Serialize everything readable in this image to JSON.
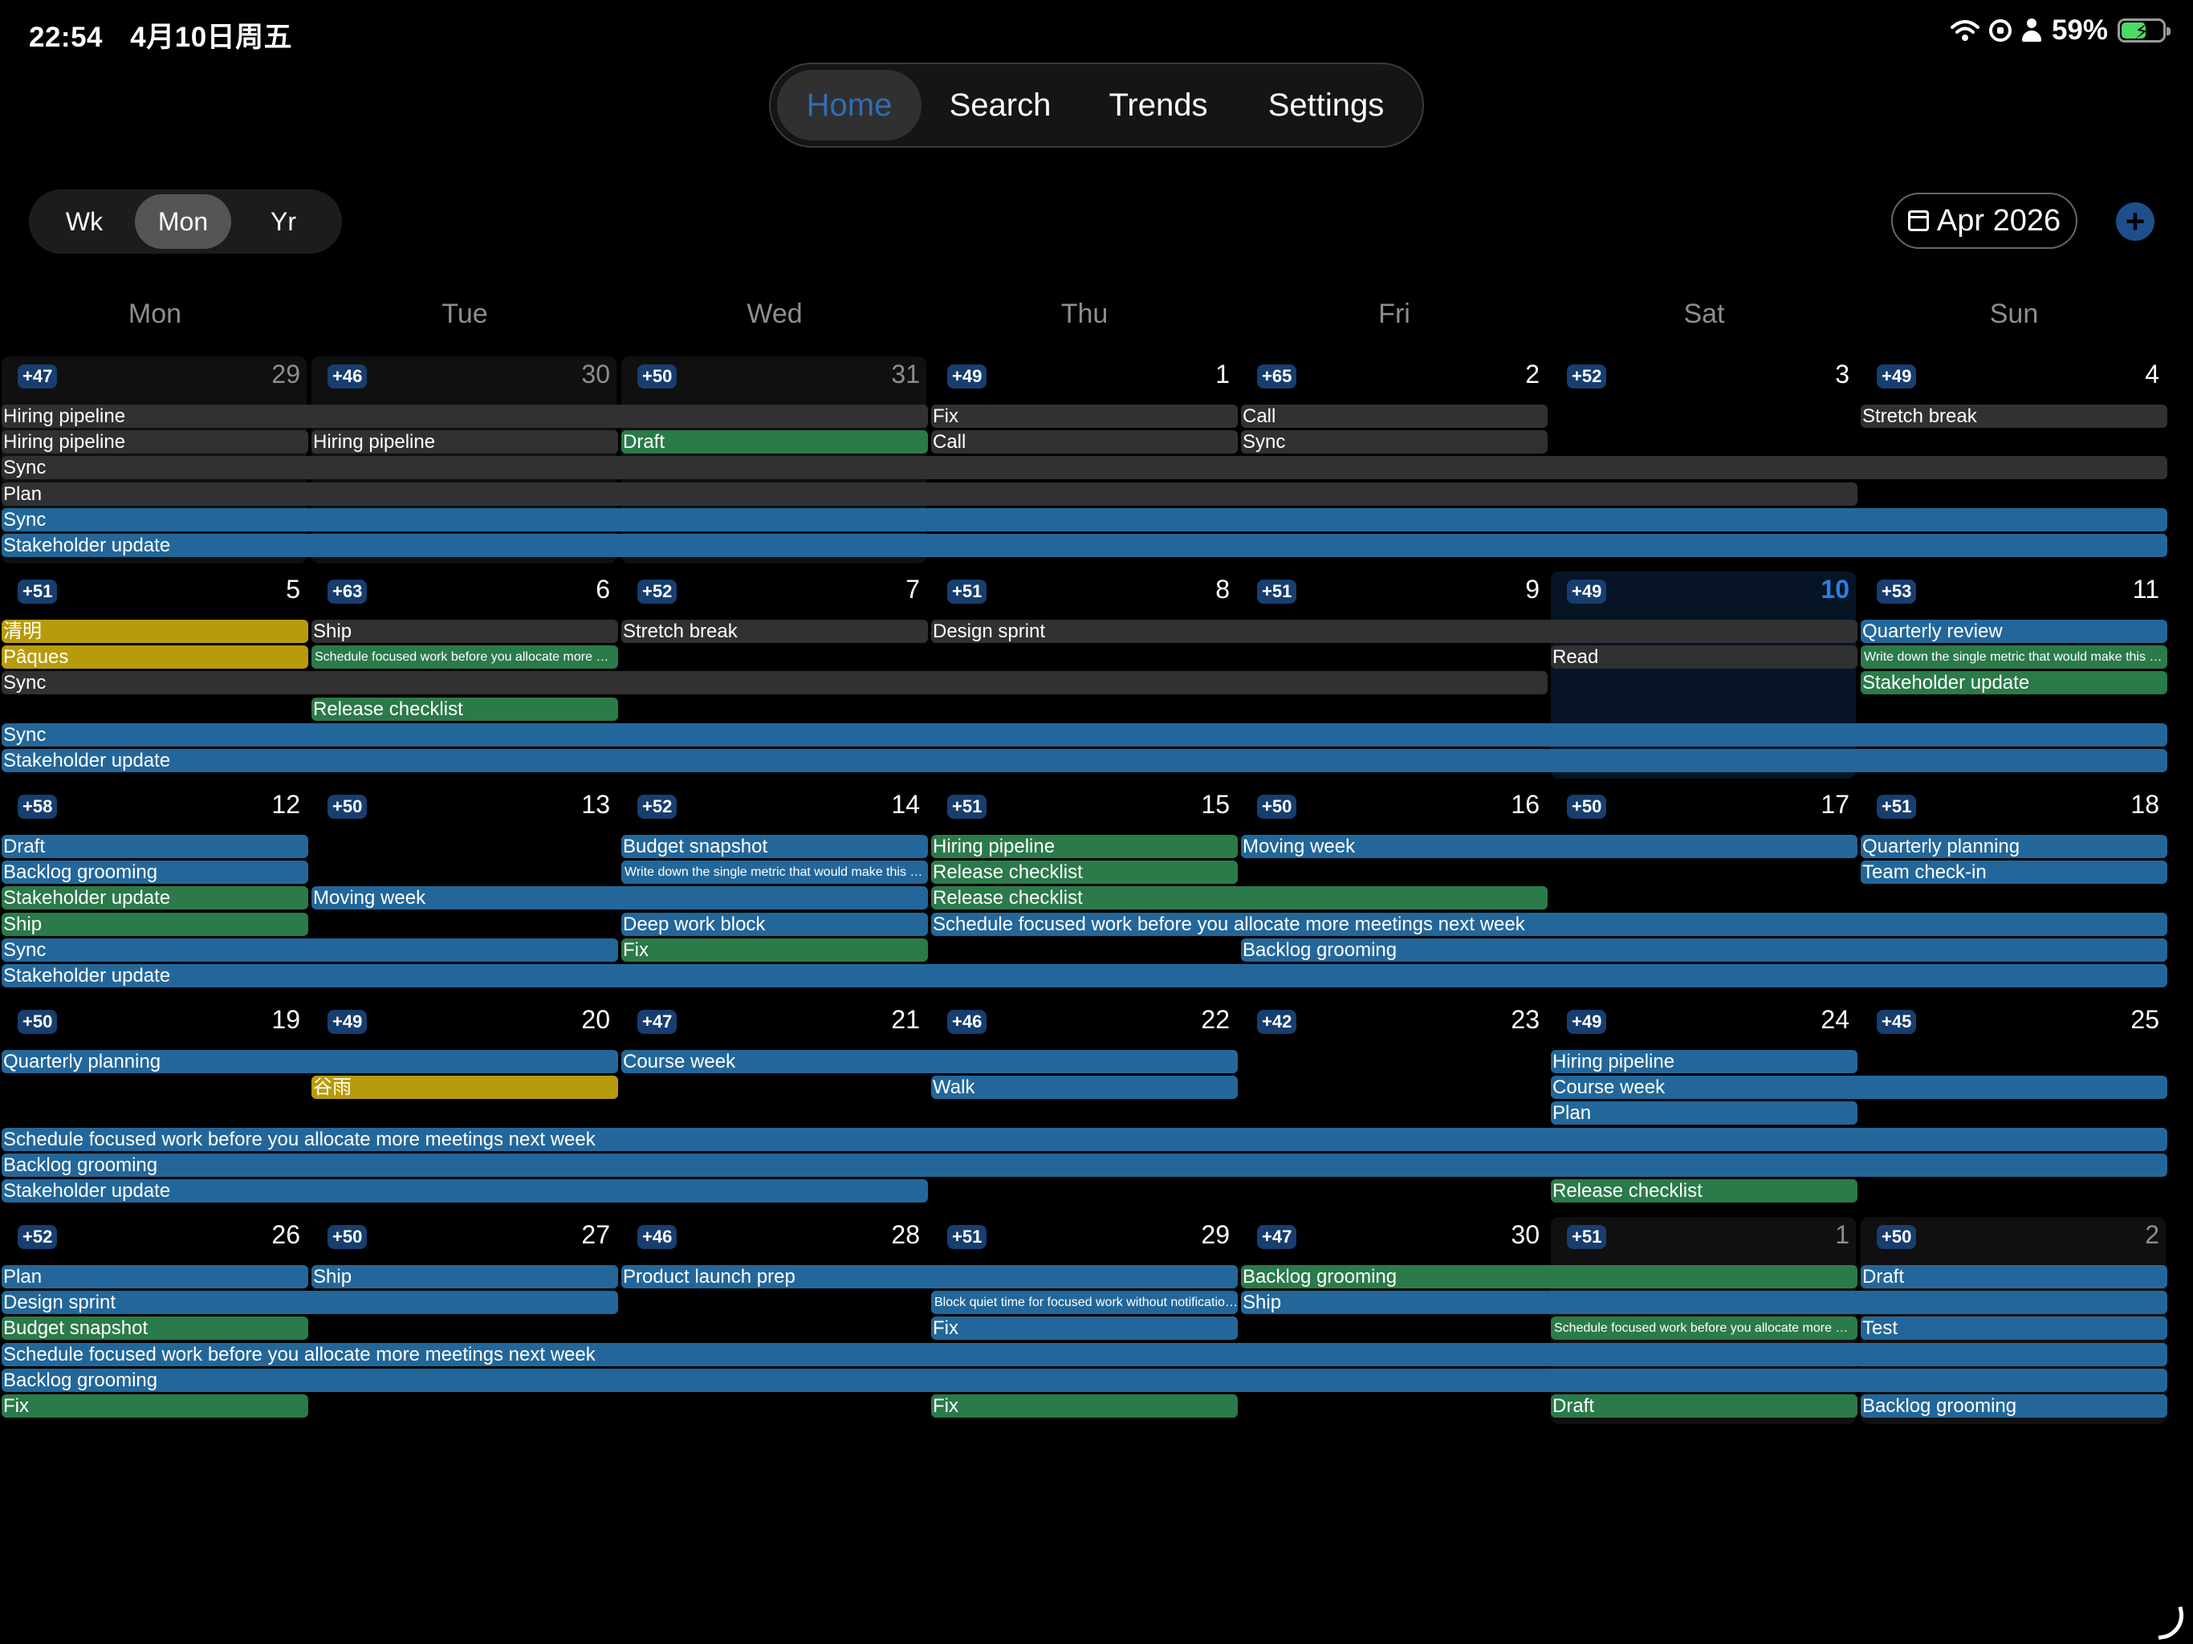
{
  "status_bar": {
    "time": "22:54",
    "date": "4月10日周五",
    "battery": "59%",
    "battery_level": 0.59
  },
  "tabs": [
    {
      "label": "Home",
      "active": true
    },
    {
      "label": "Search",
      "active": false
    },
    {
      "label": "Trends",
      "active": false
    },
    {
      "label": "Settings",
      "active": false
    }
  ],
  "range_selector": {
    "options": [
      "Wk",
      "Mon",
      "Yr"
    ],
    "selected": "Mon"
  },
  "month_button": {
    "label": "Apr 2026"
  },
  "add_button": {
    "label": "+"
  },
  "weekdays": [
    "Mon",
    "Tue",
    "Wed",
    "Thu",
    "Fri",
    "Sat",
    "Sun"
  ],
  "colors": {
    "gray": "#313131",
    "blue": "#23679a",
    "green": "#2b7a4a",
    "yellow": "#b89b0c",
    "today": "#2d7fe0",
    "badge": "#173e6e"
  },
  "weeks": [
    {
      "days": [
        {
          "num": "29",
          "badge": "+47",
          "other_month": true
        },
        {
          "num": "30",
          "badge": "+46",
          "other_month": true
        },
        {
          "num": "31",
          "badge": "+50",
          "other_month": true
        },
        {
          "num": "1",
          "badge": "+49"
        },
        {
          "num": "2",
          "badge": "+65"
        },
        {
          "num": "3",
          "badge": "+52"
        },
        {
          "num": "4",
          "badge": "+49"
        }
      ],
      "events": [
        {
          "title": "Hiring pipeline",
          "start": 0,
          "span": 3,
          "row": 0,
          "color": "gray"
        },
        {
          "title": "Fix",
          "start": 3,
          "span": 1,
          "row": 0,
          "color": "gray"
        },
        {
          "title": "Call",
          "start": 4,
          "span": 1,
          "row": 0,
          "color": "gray"
        },
        {
          "title": "Stretch break",
          "start": 6,
          "span": 1,
          "row": 0,
          "color": "gray"
        },
        {
          "title": "Hiring pipeline",
          "start": 0,
          "span": 1,
          "row": 1,
          "color": "gray"
        },
        {
          "title": "Hiring pipeline",
          "start": 1,
          "span": 1,
          "row": 1,
          "color": "gray"
        },
        {
          "title": "Draft",
          "start": 2,
          "span": 1,
          "row": 1,
          "color": "green"
        },
        {
          "title": "Call",
          "start": 3,
          "span": 1,
          "row": 1,
          "color": "gray"
        },
        {
          "title": "Sync",
          "start": 4,
          "span": 1,
          "row": 1,
          "color": "gray"
        },
        {
          "title": "Sync",
          "start": 0,
          "span": 7,
          "row": 2,
          "color": "gray"
        },
        {
          "title": "Plan",
          "start": 0,
          "span": 6,
          "row": 3,
          "color": "gray"
        },
        {
          "title": "Sync",
          "start": 0,
          "span": 7,
          "row": 4,
          "color": "blue"
        },
        {
          "title": "Stakeholder update",
          "start": 0,
          "span": 7,
          "row": 5,
          "color": "blue"
        }
      ]
    },
    {
      "days": [
        {
          "num": "5",
          "badge": "+51"
        },
        {
          "num": "6",
          "badge": "+63"
        },
        {
          "num": "7",
          "badge": "+52"
        },
        {
          "num": "8",
          "badge": "+51"
        },
        {
          "num": "9",
          "badge": "+51"
        },
        {
          "num": "10",
          "badge": "+49",
          "today": true
        },
        {
          "num": "11",
          "badge": "+53"
        }
      ],
      "events": [
        {
          "title": "清明",
          "start": 0,
          "span": 1,
          "row": 0,
          "color": "yellow"
        },
        {
          "title": "Ship",
          "start": 1,
          "span": 1,
          "row": 0,
          "color": "gray"
        },
        {
          "title": "Stretch break",
          "start": 2,
          "span": 1,
          "row": 0,
          "color": "gray"
        },
        {
          "title": "Design sprint",
          "start": 3,
          "span": 3,
          "row": 0,
          "color": "gray"
        },
        {
          "title": "Quarterly review",
          "start": 6,
          "span": 1,
          "row": 0,
          "color": "blue"
        },
        {
          "title": "Pâques",
          "start": 0,
          "span": 1,
          "row": 1,
          "color": "yellow"
        },
        {
          "title": "Schedule focused work before you allocate more meetings next week",
          "start": 1,
          "span": 1,
          "row": 1,
          "color": "green",
          "small": true
        },
        {
          "title": "Read",
          "start": 5,
          "span": 1,
          "row": 1,
          "color": "gray"
        },
        {
          "title": "Write down the single metric that would make this week a success",
          "start": 6,
          "span": 1,
          "row": 1,
          "color": "green",
          "small": true
        },
        {
          "title": "Sync",
          "start": 0,
          "span": 5,
          "row": 2,
          "color": "gray"
        },
        {
          "title": "Stakeholder update",
          "start": 6,
          "span": 1,
          "row": 2,
          "color": "green"
        },
        {
          "title": "Release checklist",
          "start": 1,
          "span": 1,
          "row": 3,
          "color": "green"
        },
        {
          "title": "Sync",
          "start": 0,
          "span": 7,
          "row": 4,
          "color": "blue"
        },
        {
          "title": "Stakeholder update",
          "start": 0,
          "span": 7,
          "row": 5,
          "color": "blue"
        }
      ]
    },
    {
      "days": [
        {
          "num": "12",
          "badge": "+58"
        },
        {
          "num": "13",
          "badge": "+50"
        },
        {
          "num": "14",
          "badge": "+52"
        },
        {
          "num": "15",
          "badge": "+51"
        },
        {
          "num": "16",
          "badge": "+50"
        },
        {
          "num": "17",
          "badge": "+50"
        },
        {
          "num": "18",
          "badge": "+51"
        }
      ],
      "events": [
        {
          "title": "Draft",
          "start": 0,
          "span": 1,
          "row": 0,
          "color": "blue"
        },
        {
          "title": "Budget snapshot",
          "start": 2,
          "span": 1,
          "row": 0,
          "color": "blue"
        },
        {
          "title": "Hiring pipeline",
          "start": 3,
          "span": 1,
          "row": 0,
          "color": "green"
        },
        {
          "title": "Moving week",
          "start": 4,
          "span": 2,
          "row": 0,
          "color": "blue"
        },
        {
          "title": "Quarterly planning",
          "start": 6,
          "span": 1,
          "row": 0,
          "color": "blue"
        },
        {
          "title": "Backlog grooming",
          "start": 0,
          "span": 1,
          "row": 1,
          "color": "blue"
        },
        {
          "title": "Write down the single metric that would make this week a success",
          "start": 2,
          "span": 1,
          "row": 1,
          "color": "blue",
          "small": true
        },
        {
          "title": "Release checklist",
          "start": 3,
          "span": 1,
          "row": 1,
          "color": "green"
        },
        {
          "title": "Team check-in",
          "start": 6,
          "span": 1,
          "row": 1,
          "color": "blue"
        },
        {
          "title": "Stakeholder update",
          "start": 0,
          "span": 1,
          "row": 2,
          "color": "green"
        },
        {
          "title": "Moving week",
          "start": 1,
          "span": 2,
          "row": 2,
          "color": "blue"
        },
        {
          "title": "Release checklist",
          "start": 3,
          "span": 2,
          "row": 2,
          "color": "green"
        },
        {
          "title": "Ship",
          "start": 0,
          "span": 1,
          "row": 3,
          "color": "green"
        },
        {
          "title": "Deep work block",
          "start": 2,
          "span": 1,
          "row": 3,
          "color": "blue"
        },
        {
          "title": "Schedule focused work before you allocate more meetings next week",
          "start": 3,
          "span": 4,
          "row": 3,
          "color": "blue"
        },
        {
          "title": "Sync",
          "start": 0,
          "span": 2,
          "row": 4,
          "color": "blue"
        },
        {
          "title": "Fix",
          "start": 2,
          "span": 1,
          "row": 4,
          "color": "green"
        },
        {
          "title": "Backlog grooming",
          "start": 4,
          "span": 3,
          "row": 4,
          "color": "blue"
        },
        {
          "title": "Stakeholder update",
          "start": 0,
          "span": 7,
          "row": 5,
          "color": "blue"
        }
      ]
    },
    {
      "days": [
        {
          "num": "19",
          "badge": "+50"
        },
        {
          "num": "20",
          "badge": "+49"
        },
        {
          "num": "21",
          "badge": "+47"
        },
        {
          "num": "22",
          "badge": "+46"
        },
        {
          "num": "23",
          "badge": "+42"
        },
        {
          "num": "24",
          "badge": "+49"
        },
        {
          "num": "25",
          "badge": "+45"
        }
      ],
      "events": [
        {
          "title": "Quarterly planning",
          "start": 0,
          "span": 2,
          "row": 0,
          "color": "blue"
        },
        {
          "title": "Course week",
          "start": 2,
          "span": 2,
          "row": 0,
          "color": "blue"
        },
        {
          "title": "Hiring pipeline",
          "start": 5,
          "span": 1,
          "row": 0,
          "color": "blue"
        },
        {
          "title": "谷雨",
          "start": 1,
          "span": 1,
          "row": 1,
          "color": "yellow"
        },
        {
          "title": "Walk",
          "start": 3,
          "span": 1,
          "row": 1,
          "color": "blue"
        },
        {
          "title": "Course week",
          "start": 5,
          "span": 2,
          "row": 1,
          "color": "blue"
        },
        {
          "title": "Plan",
          "start": 5,
          "span": 1,
          "row": 2,
          "color": "blue"
        },
        {
          "title": "Schedule focused work before you allocate more meetings next week",
          "start": 0,
          "span": 7,
          "row": 3,
          "color": "blue"
        },
        {
          "title": "Backlog grooming",
          "start": 0,
          "span": 7,
          "row": 4,
          "color": "blue"
        },
        {
          "title": "Stakeholder update",
          "start": 0,
          "span": 3,
          "row": 5,
          "color": "blue"
        },
        {
          "title": "Release checklist",
          "start": 5,
          "span": 1,
          "row": 5,
          "color": "green"
        }
      ]
    },
    {
      "days": [
        {
          "num": "26",
          "badge": "+52"
        },
        {
          "num": "27",
          "badge": "+50"
        },
        {
          "num": "28",
          "badge": "+46"
        },
        {
          "num": "29",
          "badge": "+51"
        },
        {
          "num": "30",
          "badge": "+47"
        },
        {
          "num": "1",
          "badge": "+51",
          "other_month": true
        },
        {
          "num": "2",
          "badge": "+50",
          "other_month": true
        }
      ],
      "events": [
        {
          "title": "Plan",
          "start": 0,
          "span": 1,
          "row": 0,
          "color": "blue"
        },
        {
          "title": "Ship",
          "start": 1,
          "span": 1,
          "row": 0,
          "color": "blue"
        },
        {
          "title": "Product launch prep",
          "start": 2,
          "span": 2,
          "row": 0,
          "color": "blue"
        },
        {
          "title": "Backlog grooming",
          "start": 4,
          "span": 2,
          "row": 0,
          "color": "green"
        },
        {
          "title": "Draft",
          "start": 6,
          "span": 1,
          "row": 0,
          "color": "blue"
        },
        {
          "title": "Design sprint",
          "start": 0,
          "span": 2,
          "row": 1,
          "color": "blue"
        },
        {
          "title": "Block quiet time for focused work without notifications",
          "start": 3,
          "span": 1,
          "row": 1,
          "color": "blue",
          "small": true
        },
        {
          "title": "Ship",
          "start": 4,
          "span": 3,
          "row": 1,
          "color": "blue"
        },
        {
          "title": "Budget snapshot",
          "start": 0,
          "span": 1,
          "row": 2,
          "color": "green"
        },
        {
          "title": "Fix",
          "start": 3,
          "span": 1,
          "row": 2,
          "color": "blue"
        },
        {
          "title": "Schedule focused work before you allocate more meetings next week",
          "start": 5,
          "span": 1,
          "row": 2,
          "color": "green",
          "small": true
        },
        {
          "title": "Test",
          "start": 6,
          "span": 1,
          "row": 2,
          "color": "blue"
        },
        {
          "title": "Schedule focused work before you allocate more meetings next week",
          "start": 0,
          "span": 7,
          "row": 3,
          "color": "blue"
        },
        {
          "title": "Backlog grooming",
          "start": 0,
          "span": 7,
          "row": 4,
          "color": "blue"
        },
        {
          "title": "Fix",
          "start": 0,
          "span": 1,
          "row": 5,
          "color": "green"
        },
        {
          "title": "Fix",
          "start": 3,
          "span": 1,
          "row": 5,
          "color": "green"
        },
        {
          "title": "Draft",
          "start": 5,
          "span": 1,
          "row": 5,
          "color": "green"
        },
        {
          "title": "Backlog grooming",
          "start": 6,
          "span": 1,
          "row": 5,
          "color": "blue"
        }
      ]
    }
  ]
}
